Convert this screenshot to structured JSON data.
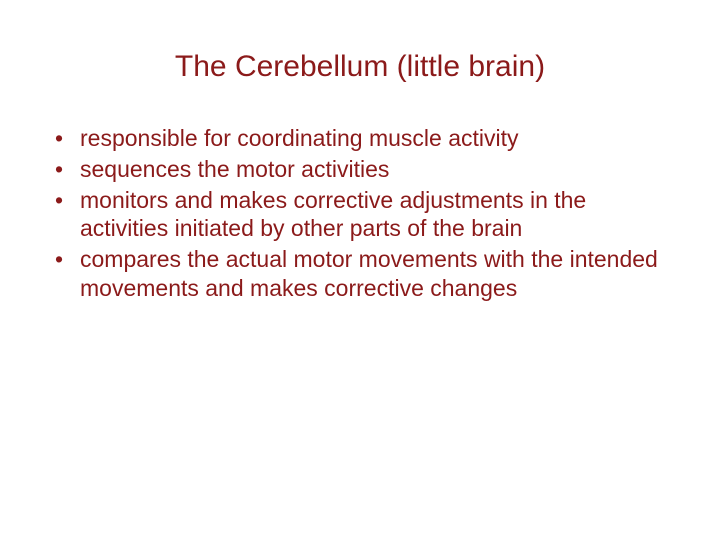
{
  "slide": {
    "title": "The Cerebellum (little brain)",
    "title_color": "#8b1a1a",
    "title_fontsize": 30,
    "body_color": "#8b1a1a",
    "body_fontsize": 23,
    "background_color": "#ffffff",
    "bullets": [
      "responsible for coordinating muscle activity",
      "sequences the motor activities",
      "monitors and makes corrective adjustments in the activities initiated by other parts of the brain",
      "compares the actual motor movements with the intended movements and makes corrective changes"
    ]
  }
}
